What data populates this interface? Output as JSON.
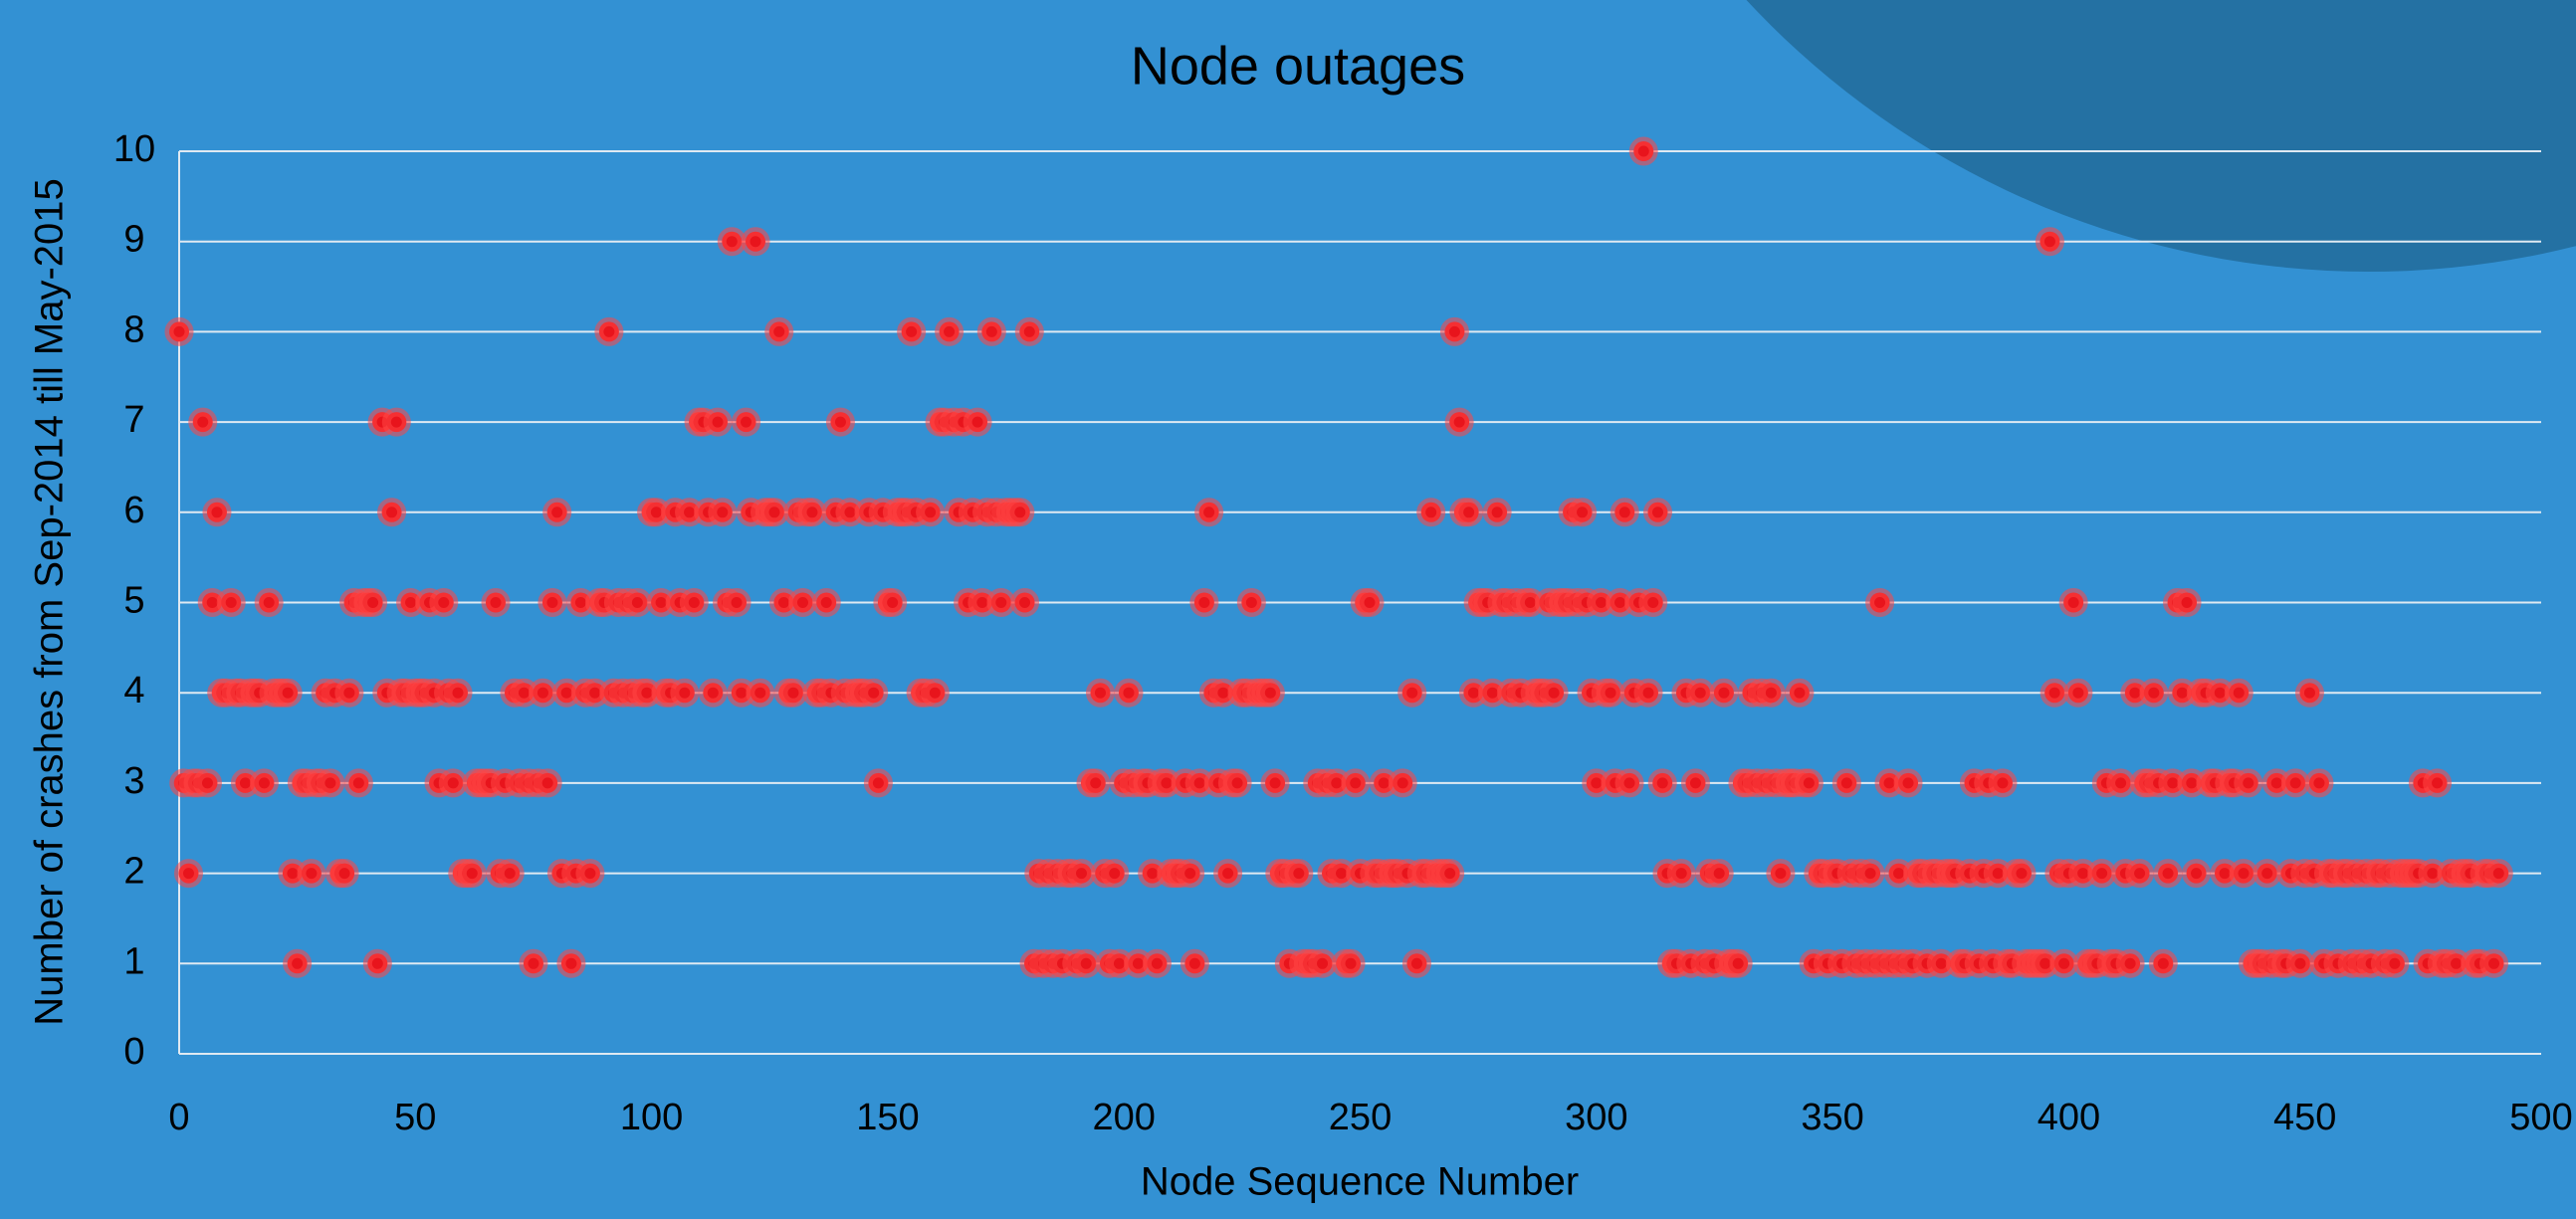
{
  "chart_data": {
    "type": "scatter",
    "title": "Node outages",
    "x_label": "Node Sequence Number",
    "y_label": "Number of crashes from Sep-2014 till May-2015",
    "xlim": [
      0,
      500
    ],
    "ylim": [
      0,
      10
    ],
    "xticks": [
      0,
      50,
      100,
      150,
      200,
      250,
      300,
      350,
      400,
      450,
      500
    ],
    "yticks": [
      0,
      1,
      2,
      3,
      4,
      5,
      6,
      7,
      8,
      9,
      10
    ],
    "grid": true,
    "color": "#e8141c",
    "x": [
      0,
      1,
      2,
      3,
      4,
      5,
      6,
      7,
      8,
      9,
      10,
      11,
      12,
      13,
      14,
      15,
      16,
      17,
      18,
      19,
      20,
      21,
      22,
      23,
      24,
      25,
      26,
      27,
      28,
      29,
      30,
      31,
      32,
      33,
      34,
      35,
      36,
      37,
      38,
      39,
      40,
      41,
      42,
      43,
      44,
      45,
      46,
      47,
      48,
      49,
      50,
      51,
      52,
      53,
      54,
      55,
      56,
      57,
      58,
      59,
      60,
      61,
      62,
      63,
      64,
      65,
      66,
      67,
      68,
      69,
      70,
      71,
      72,
      73,
      74,
      75,
      76,
      77,
      78,
      79,
      80,
      81,
      82,
      83,
      84,
      85,
      86,
      87,
      88,
      89,
      90,
      91,
      92,
      93,
      94,
      95,
      96,
      97,
      98,
      99,
      100,
      101,
      102,
      103,
      104,
      105,
      106,
      107,
      108,
      109,
      110,
      111,
      112,
      113,
      114,
      115,
      116,
      117,
      118,
      119,
      120,
      121,
      122,
      123,
      124,
      125,
      126,
      127,
      128,
      129,
      130,
      131,
      132,
      133,
      134,
      135,
      136,
      137,
      138,
      139,
      140,
      141,
      142,
      143,
      144,
      145,
      146,
      147,
      148,
      149,
      150,
      151,
      152,
      153,
      154,
      155,
      156,
      157,
      158,
      159,
      160,
      161,
      162,
      163,
      164,
      165,
      166,
      167,
      168,
      169,
      170,
      171,
      172,
      173,
      174,
      175,
      176,
      177,
      178,
      179,
      180,
      181,
      182,
      183,
      184,
      185,
      186,
      187,
      188,
      189,
      190,
      191,
      192,
      193,
      194,
      195,
      196,
      197,
      198,
      199,
      200,
      201,
      202,
      203,
      204,
      205,
      206,
      207,
      208,
      209,
      210,
      211,
      212,
      213,
      214,
      215,
      216,
      217,
      218,
      219,
      220,
      221,
      222,
      223,
      224,
      225,
      226,
      227,
      228,
      229,
      230,
      231,
      232,
      233,
      234,
      235,
      236,
      237,
      238,
      239,
      240,
      241,
      242,
      243,
      244,
      245,
      246,
      247,
      248,
      249,
      250,
      251,
      252,
      253,
      254,
      255,
      256,
      257,
      258,
      259,
      260,
      261,
      262,
      263,
      264,
      265,
      266,
      267,
      268,
      269,
      270,
      271,
      272,
      273,
      274,
      275,
      276,
      277,
      278,
      279,
      280,
      281,
      282,
      283,
      284,
      285,
      286,
      287,
      288,
      289,
      290,
      291,
      292,
      293,
      294,
      295,
      296,
      297,
      298,
      299,
      300,
      301,
      302,
      303,
      304,
      305,
      306,
      307,
      308,
      309,
      310,
      311,
      312,
      313,
      314,
      315,
      316,
      317,
      318,
      319,
      320,
      321,
      322,
      323,
      324,
      325,
      326,
      327,
      328,
      329,
      330,
      331,
      332,
      333,
      334,
      335,
      336,
      337,
      338,
      339,
      340,
      341,
      342,
      343,
      344,
      345,
      346,
      347,
      348,
      349,
      350,
      351,
      352,
      353,
      354,
      355,
      356,
      357,
      358,
      359,
      360,
      361,
      362,
      363,
      364,
      365,
      366,
      367,
      368,
      369,
      370,
      371,
      372,
      373,
      374,
      375,
      376,
      377,
      378,
      379,
      380,
      381,
      382,
      383,
      384,
      385,
      386,
      387,
      388,
      389,
      390,
      391,
      392,
      393,
      394,
      395,
      396,
      397,
      398,
      399,
      400,
      401,
      402,
      403,
      404,
      405,
      406,
      407,
      408,
      409,
      410,
      411,
      412,
      413,
      414,
      415,
      416,
      417,
      418,
      419,
      420,
      421,
      422,
      423,
      424,
      425,
      426,
      427,
      428,
      429,
      430,
      431,
      432,
      433,
      434,
      435,
      436,
      437,
      438,
      439,
      440,
      441,
      442,
      443,
      444,
      445,
      446,
      447,
      448,
      449,
      450,
      451,
      452,
      453,
      454,
      455,
      456,
      457,
      458,
      459,
      460,
      461,
      462,
      463,
      464,
      465,
      466,
      467,
      468,
      469,
      470,
      471,
      472,
      473,
      474,
      475,
      476,
      477,
      478,
      479,
      480,
      481,
      482,
      483,
      484,
      485,
      486,
      487,
      488,
      489,
      490,
      491
    ],
    "values": [
      8,
      3,
      2,
      3,
      3,
      7,
      3,
      5,
      6,
      4,
      4,
      5,
      4,
      4,
      3,
      4,
      4,
      4,
      3,
      5,
      4,
      4,
      4,
      4,
      2,
      1,
      3,
      3,
      2,
      3,
      3,
      4,
      3,
      4,
      2,
      2,
      4,
      5,
      3,
      5,
      5,
      5,
      1,
      7,
      4,
      6,
      7,
      4,
      4,
      5,
      4,
      4,
      4,
      5,
      4,
      3,
      5,
      4,
      3,
      4,
      2,
      2,
      2,
      3,
      3,
      3,
      3,
      5,
      2,
      3,
      2,
      4,
      3,
      4,
      3,
      1,
      3,
      4,
      3,
      5,
      6,
      2,
      4,
      1,
      2,
      5,
      4,
      2,
      4,
      5,
      5,
      8,
      4,
      5,
      4,
      5,
      4,
      5,
      4,
      4,
      6,
      6,
      5,
      4,
      4,
      6,
      5,
      4,
      6,
      5,
      7,
      7,
      6,
      4,
      7,
      6,
      5,
      9,
      5,
      4,
      7,
      6,
      9,
      4,
      6,
      6,
      6,
      8,
      5,
      4,
      4,
      6,
      5,
      6,
      6,
      4,
      4,
      5,
      4,
      6,
      7,
      4,
      6,
      4,
      4,
      4,
      6,
      4,
      3,
      6,
      5,
      5,
      6,
      6,
      6,
      8,
      6,
      4,
      4,
      6,
      4,
      7,
      7,
      8,
      7,
      6,
      7,
      5,
      6,
      7,
      5,
      6,
      8,
      6,
      5,
      6,
      6,
      6,
      6,
      5,
      8,
      1,
      2,
      1,
      2,
      1,
      2,
      1,
      2,
      2,
      1,
      2,
      1,
      3,
      3,
      4,
      2,
      1,
      2,
      1,
      3,
      4,
      3,
      1,
      3,
      3,
      2,
      1,
      3,
      3,
      2,
      2,
      2,
      3,
      2,
      1,
      3,
      5,
      6,
      4,
      3,
      4,
      2,
      3,
      3,
      4,
      4,
      5,
      4,
      4,
      4,
      4,
      3,
      2,
      2,
      1,
      2,
      2,
      1,
      1,
      1,
      3,
      1,
      3,
      2,
      3,
      2,
      1,
      1,
      3,
      2,
      5,
      5,
      2,
      2,
      3,
      2,
      2,
      2,
      3,
      2,
      4,
      1,
      2,
      2,
      6,
      2,
      2,
      2,
      2,
      8,
      7,
      6,
      6,
      4,
      5,
      5,
      5,
      4,
      6,
      5,
      5,
      4,
      5,
      4,
      5,
      5,
      4,
      4,
      4,
      5,
      4,
      5,
      5,
      5,
      6,
      5,
      6,
      5,
      4,
      3,
      5,
      4,
      4,
      3,
      5,
      6,
      3,
      4,
      5,
      10,
      4,
      5,
      6,
      3,
      2,
      1,
      1,
      2,
      4,
      1,
      3,
      4,
      1,
      2,
      1,
      2,
      4,
      1,
      1,
      1,
      3,
      3,
      4,
      3,
      4,
      3,
      4,
      3,
      2,
      3,
      3,
      3,
      4,
      3,
      3,
      1,
      2,
      2,
      1,
      2,
      2,
      1,
      3,
      2,
      1,
      2,
      1,
      2,
      1,
      5,
      1,
      3,
      1,
      2,
      1,
      3,
      1,
      2,
      2,
      1,
      2,
      2,
      1,
      2,
      2,
      2,
      1,
      1,
      2,
      3,
      1,
      2,
      3,
      1,
      2,
      3,
      1,
      1,
      2,
      2,
      1,
      1,
      1,
      1,
      1,
      9,
      4,
      2,
      1,
      2,
      5,
      4,
      2,
      1,
      1,
      1,
      2,
      3,
      1,
      1,
      3,
      2,
      1,
      4,
      2,
      3,
      3,
      4,
      3,
      1,
      2,
      3,
      5,
      4,
      5,
      3,
      2,
      4,
      4,
      3,
      3,
      4,
      2,
      3,
      3,
      4,
      2,
      3,
      1,
      1,
      1,
      2,
      1,
      3,
      1,
      1,
      2,
      3,
      1,
      2,
      4,
      2,
      3,
      1,
      2,
      2,
      1,
      2,
      2,
      1,
      2,
      1,
      2,
      1,
      2,
      2,
      1,
      2,
      1,
      2,
      2,
      2,
      2,
      2,
      3,
      1,
      2,
      3,
      1,
      1,
      2,
      1,
      2,
      2,
      2,
      1,
      1,
      2,
      2,
      1,
      2
    ]
  }
}
